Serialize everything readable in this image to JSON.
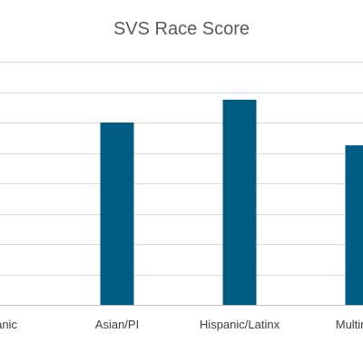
{
  "chart_data": {
    "type": "bar",
    "title": "SVS Race Score",
    "categories": [
      "Hispanic",
      "Asian/PI",
      "Hispanic/Latinx",
      "Multiracial"
    ],
    "values": [
      null,
      6.0,
      6.75,
      5.25
    ],
    "ylim": [
      0,
      8
    ],
    "gridlines": true,
    "grid_step": 1,
    "bar_color": "#005c83",
    "legend": "none"
  }
}
